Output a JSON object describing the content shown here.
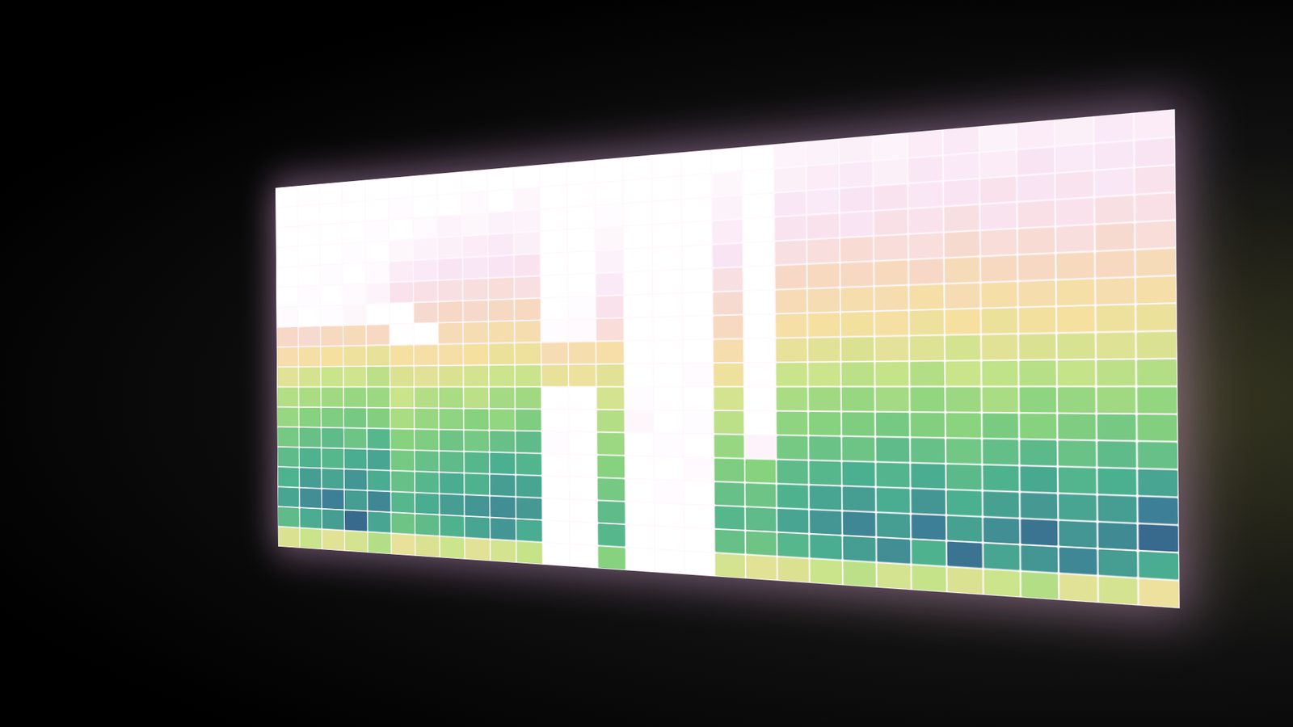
{
  "chart_data": {
    "type": "heatmap",
    "tick_labels": false,
    "color_range": [
      0,
      100
    ],
    "cells": [
      [
        100,
        100,
        100,
        100,
        100,
        100,
        100,
        100,
        100,
        100,
        100,
        100,
        100,
        100,
        100,
        100,
        100,
        100,
        100,
        96,
        95,
        94,
        96,
        93,
        92,
        95,
        93,
        94,
        92,
        93
      ],
      [
        100,
        100,
        100,
        100,
        100,
        99,
        100,
        100,
        98,
        100,
        97,
        100,
        100,
        100,
        100,
        100,
        100,
        97,
        100,
        94,
        93,
        92,
        94,
        91,
        92,
        93,
        90,
        92,
        91,
        90
      ],
      [
        100,
        100,
        100,
        100,
        99,
        100,
        98,
        96,
        97,
        95,
        96,
        100,
        100,
        99,
        100,
        100,
        100,
        95,
        100,
        91,
        92,
        90,
        89,
        91,
        90,
        88,
        90,
        89,
        91,
        88
      ],
      [
        100,
        100,
        100,
        99,
        100,
        97,
        95,
        94,
        93,
        92,
        94,
        100,
        100,
        97,
        100,
        100,
        100,
        93,
        100,
        89,
        88,
        90,
        87,
        88,
        86,
        89,
        87,
        88,
        86,
        87
      ],
      [
        100,
        100,
        99,
        100,
        98,
        93,
        92,
        90,
        91,
        90,
        89,
        100,
        100,
        95,
        100,
        100,
        100,
        90,
        100,
        86,
        85,
        83,
        84,
        85,
        82,
        84,
        83,
        85,
        82,
        84
      ],
      [
        100,
        99,
        100,
        98,
        96,
        88,
        87,
        86,
        85,
        84,
        86,
        100,
        100,
        92,
        100,
        100,
        100,
        86,
        100,
        80,
        78,
        79,
        77,
        80,
        76,
        78,
        79,
        77,
        78,
        76
      ],
      [
        98,
        100,
        99,
        97,
        100,
        100,
        82,
        80,
        81,
        79,
        78,
        100,
        99,
        88,
        100,
        100,
        100,
        82,
        100,
        75,
        74,
        72,
        73,
        70,
        74,
        71,
        72,
        70,
        73,
        71
      ],
      [
        80,
        82,
        78,
        76,
        79,
        100,
        100,
        76,
        74,
        72,
        73,
        99,
        98,
        84,
        100,
        100,
        100,
        78,
        100,
        70,
        68,
        67,
        69,
        66,
        68,
        65,
        67,
        68,
        66,
        65
      ],
      [
        72,
        70,
        68,
        66,
        64,
        68,
        70,
        70,
        68,
        65,
        66,
        74,
        72,
        70,
        100,
        100,
        100,
        72,
        100,
        64,
        62,
        60,
        63,
        61,
        58,
        62,
        60,
        59,
        61,
        60
      ],
      [
        62,
        58,
        55,
        57,
        52,
        60,
        62,
        60,
        58,
        56,
        55,
        64,
        66,
        62,
        100,
        100,
        99,
        66,
        100,
        55,
        56,
        52,
        54,
        50,
        55,
        53,
        51,
        54,
        52,
        50
      ],
      [
        50,
        48,
        46,
        44,
        45,
        55,
        50,
        48,
        52,
        47,
        46,
        100,
        100,
        58,
        99,
        100,
        100,
        58,
        100,
        48,
        46,
        44,
        47,
        43,
        45,
        48,
        42,
        44,
        46,
        43
      ],
      [
        44,
        40,
        38,
        36,
        39,
        48,
        44,
        42,
        40,
        43,
        38,
        100,
        100,
        50,
        97,
        100,
        99,
        52,
        100,
        42,
        40,
        38,
        36,
        39,
        41,
        37,
        40,
        38,
        36,
        39
      ],
      [
        36,
        32,
        30,
        34,
        28,
        40,
        38,
        34,
        36,
        32,
        30,
        99,
        100,
        45,
        100,
        99,
        100,
        44,
        96,
        36,
        33,
        34,
        30,
        32,
        35,
        31,
        29,
        33,
        30,
        32
      ],
      [
        30,
        26,
        28,
        24,
        22,
        36,
        32,
        30,
        28,
        25,
        27,
        100,
        100,
        40,
        100,
        100,
        98,
        38,
        40,
        30,
        28,
        25,
        27,
        24,
        29,
        26,
        23,
        27,
        25,
        22
      ],
      [
        26,
        20,
        22,
        18,
        24,
        32,
        28,
        24,
        26,
        20,
        22,
        100,
        100,
        36,
        100,
        99,
        100,
        32,
        34,
        26,
        22,
        20,
        24,
        18,
        25,
        21,
        19,
        22,
        20,
        12
      ],
      [
        22,
        16,
        12,
        20,
        14,
        28,
        24,
        20,
        18,
        16,
        19,
        100,
        100,
        30,
        100,
        100,
        100,
        28,
        30,
        22,
        18,
        14,
        20,
        12,
        21,
        16,
        10,
        18,
        15,
        8
      ],
      [
        30,
        24,
        20,
        8,
        22,
        34,
        30,
        26,
        22,
        18,
        24,
        100,
        100,
        28,
        100,
        100,
        100,
        32,
        34,
        28,
        24,
        20,
        16,
        26,
        10,
        22,
        18,
        14,
        20,
        24
      ],
      [
        60,
        55,
        62,
        58,
        50,
        64,
        60,
        56,
        62,
        58,
        54,
        100,
        100,
        40,
        100,
        100,
        100,
        58,
        62,
        60,
        55,
        52,
        58,
        54,
        60,
        56,
        50,
        62,
        58,
        66
      ]
    ]
  }
}
